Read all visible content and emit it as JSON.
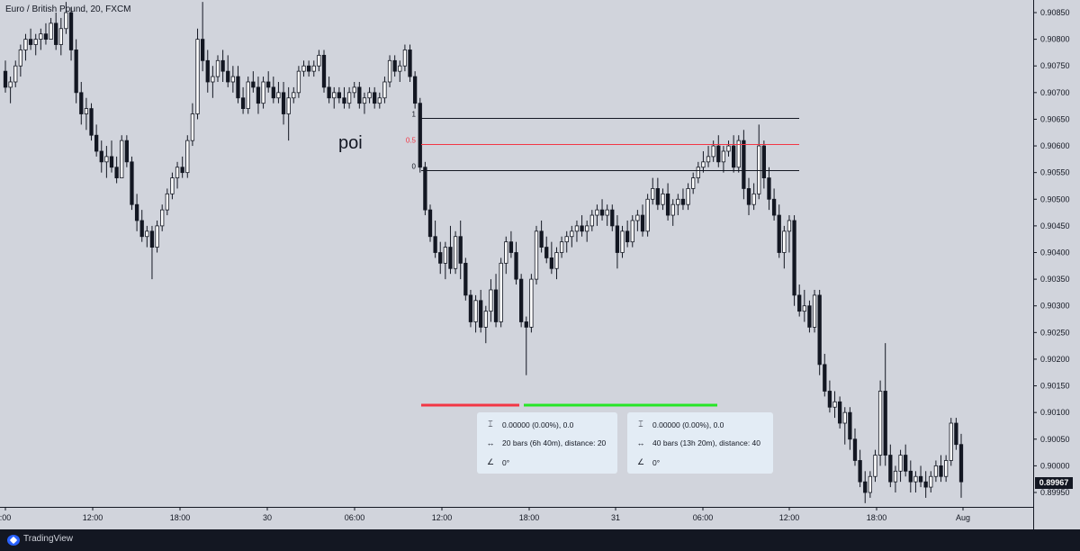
{
  "header": {
    "symbol_title": "Euro / British Pound, 20, FXCM"
  },
  "annotations": {
    "poi": "poi"
  },
  "last_price_label": "0.89967",
  "fib": {
    "level_1": "1",
    "level_half": "0.5",
    "level_0": "0"
  },
  "measure_boxes": [
    {
      "price_change": "0.00000 (0.00%), 0.0",
      "bars": "20 bars (6h 40m), distance: 20",
      "angle": "0°"
    },
    {
      "price_change": "0.00000 (0.00%), 0.0",
      "bars": "40 bars (13h 20m), distance: 40",
      "angle": "0°"
    }
  ],
  "footer": {
    "brand": "TradingView"
  },
  "colors": {
    "background": "#d1d4dc",
    "candle": "#131722",
    "red_line": "#f23645",
    "green_line": "#26e626",
    "fib_mid": "#f23645"
  },
  "icons": {
    "range": "price-range-icon",
    "bars": "bars-range-icon",
    "angle": "angle-icon",
    "logo": "tradingview-logo-icon"
  },
  "chart_data": {
    "type": "candlestick",
    "title": "Euro / British Pound, 20, FXCM",
    "ylim": [
      0.89925,
      0.90865
    ],
    "y_ticks": [
      "0.90850",
      "0.90800",
      "0.90750",
      "0.90700",
      "0.90650",
      "0.90600",
      "0.90550",
      "0.90500",
      "0.90450",
      "0.90400",
      "0.90350",
      "0.90300",
      "0.90250",
      "0.90200",
      "0.90150",
      "0.90100",
      "0.90050",
      "0.90000",
      "0.89950"
    ],
    "x_tick_labels": [
      ":00",
      "12:00",
      "18:00",
      "30",
      "06:00",
      "12:00",
      "18:00",
      "31",
      "06:00",
      "12:00",
      "18:00",
      "Aug"
    ],
    "last_price": 0.89967,
    "fib_levels": {
      "1": 0.90653,
      "0.5": 0.90604,
      "0": 0.90555
    },
    "measure_ranges": [
      {
        "color": "red",
        "bars": 20
      },
      {
        "color": "green",
        "bars": 40
      }
    ],
    "candles": [
      [
        0.9074,
        0.9076,
        0.907,
        0.9071
      ],
      [
        0.9071,
        0.9073,
        0.9068,
        0.9072
      ],
      [
        0.9072,
        0.9076,
        0.9071,
        0.9075
      ],
      [
        0.9075,
        0.9079,
        0.9073,
        0.9078
      ],
      [
        0.9078,
        0.9081,
        0.9076,
        0.908
      ],
      [
        0.908,
        0.9082,
        0.9078,
        0.9079
      ],
      [
        0.9079,
        0.9081,
        0.9077,
        0.908
      ],
      [
        0.908,
        0.9082,
        0.9078,
        0.9081
      ],
      [
        0.9081,
        0.9083,
        0.9079,
        0.908
      ],
      [
        0.908,
        0.9084,
        0.908,
        0.9083
      ],
      [
        0.9083,
        0.9085,
        0.9078,
        0.9079
      ],
      [
        0.9079,
        0.9084,
        0.9077,
        0.9082
      ],
      [
        0.9082,
        0.9087,
        0.9081,
        0.9085
      ],
      [
        0.9085,
        0.9086,
        0.9076,
        0.9078
      ],
      [
        0.9078,
        0.908,
        0.9068,
        0.907
      ],
      [
        0.907,
        0.9072,
        0.9064,
        0.9066
      ],
      [
        0.9066,
        0.9069,
        0.9063,
        0.9067
      ],
      [
        0.9067,
        0.9068,
        0.9061,
        0.9062
      ],
      [
        0.9062,
        0.9064,
        0.9058,
        0.9059
      ],
      [
        0.9059,
        0.9061,
        0.9055,
        0.9057
      ],
      [
        0.9057,
        0.906,
        0.9054,
        0.9058
      ],
      [
        0.9058,
        0.9061,
        0.9055,
        0.9056
      ],
      [
        0.9056,
        0.9058,
        0.9053,
        0.9054
      ],
      [
        0.9054,
        0.9062,
        0.9054,
        0.9061
      ],
      [
        0.9061,
        0.9062,
        0.9056,
        0.9057
      ],
      [
        0.9057,
        0.9058,
        0.9048,
        0.9049
      ],
      [
        0.9049,
        0.9051,
        0.9044,
        0.9046
      ],
      [
        0.9046,
        0.9048,
        0.9042,
        0.9043
      ],
      [
        0.9043,
        0.9045,
        0.9041,
        0.9044
      ],
      [
        0.9044,
        0.9045,
        0.9035,
        0.9041
      ],
      [
        0.9041,
        0.9046,
        0.904,
        0.9045
      ],
      [
        0.9045,
        0.9049,
        0.9044,
        0.9048
      ],
      [
        0.9048,
        0.9052,
        0.9047,
        0.9051
      ],
      [
        0.9051,
        0.9055,
        0.905,
        0.9054
      ],
      [
        0.9054,
        0.9057,
        0.9052,
        0.9056
      ],
      [
        0.9056,
        0.9058,
        0.9054,
        0.9055
      ],
      [
        0.9055,
        0.9062,
        0.9054,
        0.9061
      ],
      [
        0.9061,
        0.9068,
        0.906,
        0.9066
      ],
      [
        0.9066,
        0.9082,
        0.9065,
        0.908
      ],
      [
        0.908,
        0.9087,
        0.9074,
        0.9076
      ],
      [
        0.9076,
        0.9078,
        0.907,
        0.9072
      ],
      [
        0.9072,
        0.9075,
        0.9069,
        0.9073
      ],
      [
        0.9073,
        0.9077,
        0.9072,
        0.9076
      ],
      [
        0.9076,
        0.9078,
        0.9072,
        0.9074
      ],
      [
        0.9074,
        0.9077,
        0.9071,
        0.9072
      ],
      [
        0.9072,
        0.9075,
        0.907,
        0.9073
      ],
      [
        0.9073,
        0.9075,
        0.9068,
        0.9069
      ],
      [
        0.9069,
        0.9071,
        0.9066,
        0.9067
      ],
      [
        0.9067,
        0.9073,
        0.9066,
        0.9072
      ],
      [
        0.9072,
        0.9074,
        0.907,
        0.9071
      ],
      [
        0.9071,
        0.9073,
        0.9066,
        0.9068
      ],
      [
        0.9068,
        0.9073,
        0.9067,
        0.9072
      ],
      [
        0.9072,
        0.9074,
        0.907,
        0.9071
      ],
      [
        0.9071,
        0.9073,
        0.9068,
        0.9069
      ],
      [
        0.9069,
        0.9072,
        0.9068,
        0.907
      ],
      [
        0.907,
        0.9072,
        0.9064,
        0.9066
      ],
      [
        0.9066,
        0.9071,
        0.9061,
        0.9069
      ],
      [
        0.9069,
        0.9071,
        0.9068,
        0.907
      ],
      [
        0.907,
        0.9075,
        0.9069,
        0.9074
      ],
      [
        0.9074,
        0.9076,
        0.9073,
        0.9075
      ],
      [
        0.9075,
        0.9076,
        0.9073,
        0.9074
      ],
      [
        0.9074,
        0.9076,
        0.9073,
        0.9075
      ],
      [
        0.9075,
        0.9078,
        0.9074,
        0.9077
      ],
      [
        0.9077,
        0.9078,
        0.907,
        0.9071
      ],
      [
        0.9071,
        0.9073,
        0.9068,
        0.9069
      ],
      [
        0.9069,
        0.9071,
        0.9067,
        0.907
      ],
      [
        0.907,
        0.9071,
        0.9068,
        0.9069
      ],
      [
        0.9069,
        0.9071,
        0.9067,
        0.9068
      ],
      [
        0.9068,
        0.9071,
        0.9067,
        0.907
      ],
      [
        0.907,
        0.9072,
        0.9069,
        0.9071
      ],
      [
        0.9071,
        0.9072,
        0.9067,
        0.9068
      ],
      [
        0.9068,
        0.907,
        0.9066,
        0.9069
      ],
      [
        0.9069,
        0.9071,
        0.9068,
        0.907
      ],
      [
        0.907,
        0.9071,
        0.9067,
        0.9068
      ],
      [
        0.9068,
        0.907,
        0.9067,
        0.9069
      ],
      [
        0.9069,
        0.9073,
        0.9068,
        0.9072
      ],
      [
        0.9072,
        0.9077,
        0.9071,
        0.9076
      ],
      [
        0.9076,
        0.9077,
        0.9073,
        0.9074
      ],
      [
        0.9074,
        0.9076,
        0.9072,
        0.9075
      ],
      [
        0.9075,
        0.9079,
        0.9074,
        0.9078
      ],
      [
        0.9078,
        0.9079,
        0.9072,
        0.9073
      ],
      [
        0.9073,
        0.9074,
        0.9067,
        0.9068
      ],
      [
        0.9068,
        0.9069,
        0.9055,
        0.9056
      ],
      [
        0.9056,
        0.9057,
        0.9047,
        0.9048
      ],
      [
        0.9048,
        0.9049,
        0.9042,
        0.9043
      ],
      [
        0.9043,
        0.9046,
        0.9039,
        0.904
      ],
      [
        0.904,
        0.9042,
        0.9036,
        0.9038
      ],
      [
        0.9038,
        0.9042,
        0.9035,
        0.9041
      ],
      [
        0.9041,
        0.9045,
        0.9036,
        0.9037
      ],
      [
        0.9037,
        0.9044,
        0.9036,
        0.9043
      ],
      [
        0.9043,
        0.9046,
        0.9035,
        0.9038
      ],
      [
        0.9038,
        0.9039,
        0.9031,
        0.9032
      ],
      [
        0.9032,
        0.9033,
        0.9026,
        0.9027
      ],
      [
        0.9027,
        0.9032,
        0.9025,
        0.9031
      ],
      [
        0.9031,
        0.9033,
        0.9025,
        0.9026
      ],
      [
        0.9026,
        0.903,
        0.9023,
        0.9029
      ],
      [
        0.9029,
        0.9035,
        0.9027,
        0.9033
      ],
      [
        0.9033,
        0.9036,
        0.9026,
        0.9027
      ],
      [
        0.9027,
        0.9039,
        0.9026,
        0.9038
      ],
      [
        0.9038,
        0.9043,
        0.9036,
        0.9042
      ],
      [
        0.9042,
        0.9044,
        0.9039,
        0.904
      ],
      [
        0.904,
        0.9042,
        0.9034,
        0.9035
      ],
      [
        0.9035,
        0.9036,
        0.9026,
        0.9027
      ],
      [
        0.9027,
        0.9028,
        0.9017,
        0.9026
      ],
      [
        0.9026,
        0.9036,
        0.9025,
        0.9035
      ],
      [
        0.9035,
        0.9045,
        0.9034,
        0.9044
      ],
      [
        0.9044,
        0.9046,
        0.904,
        0.9041
      ],
      [
        0.9041,
        0.9043,
        0.9038,
        0.9039
      ],
      [
        0.9039,
        0.9042,
        0.9036,
        0.9037
      ],
      [
        0.9037,
        0.9041,
        0.9035,
        0.904
      ],
      [
        0.904,
        0.9043,
        0.9039,
        0.9042
      ],
      [
        0.9042,
        0.9044,
        0.904,
        0.9043
      ],
      [
        0.9043,
        0.9045,
        0.9041,
        0.9044
      ],
      [
        0.9044,
        0.9046,
        0.9042,
        0.9045
      ],
      [
        0.9045,
        0.9047,
        0.9043,
        0.9044
      ],
      [
        0.9044,
        0.9046,
        0.9042,
        0.9045
      ],
      [
        0.9045,
        0.9048,
        0.9044,
        0.9047
      ],
      [
        0.9047,
        0.9049,
        0.9045,
        0.9048
      ],
      [
        0.9048,
        0.905,
        0.9046,
        0.9047
      ],
      [
        0.9047,
        0.9049,
        0.9045,
        0.9048
      ],
      [
        0.9048,
        0.9049,
        0.9044,
        0.9045
      ],
      [
        0.9045,
        0.9047,
        0.9037,
        0.904
      ],
      [
        0.904,
        0.9045,
        0.9039,
        0.9044
      ],
      [
        0.9044,
        0.9046,
        0.9041,
        0.9042
      ],
      [
        0.9042,
        0.9047,
        0.9041,
        0.9046
      ],
      [
        0.9046,
        0.9048,
        0.9044,
        0.9047
      ],
      [
        0.9047,
        0.9049,
        0.9043,
        0.9044
      ],
      [
        0.9044,
        0.9051,
        0.9043,
        0.905
      ],
      [
        0.905,
        0.9054,
        0.9049,
        0.9052
      ],
      [
        0.9052,
        0.9054,
        0.9048,
        0.9049
      ],
      [
        0.9049,
        0.9052,
        0.9048,
        0.9051
      ],
      [
        0.9051,
        0.9053,
        0.9046,
        0.9047
      ],
      [
        0.9047,
        0.905,
        0.9045,
        0.9049
      ],
      [
        0.9049,
        0.9051,
        0.9047,
        0.905
      ],
      [
        0.905,
        0.9052,
        0.9048,
        0.9049
      ],
      [
        0.9049,
        0.9053,
        0.9048,
        0.9052
      ],
      [
        0.9052,
        0.9055,
        0.9051,
        0.9054
      ],
      [
        0.9054,
        0.9057,
        0.9053,
        0.9056
      ],
      [
        0.9056,
        0.9059,
        0.9055,
        0.9057
      ],
      [
        0.9057,
        0.906,
        0.9056,
        0.9058
      ],
      [
        0.9058,
        0.9061,
        0.9057,
        0.906
      ],
      [
        0.906,
        0.9062,
        0.9056,
        0.9057
      ],
      [
        0.9057,
        0.906,
        0.9055,
        0.9059
      ],
      [
        0.9059,
        0.9061,
        0.9058,
        0.906
      ],
      [
        0.906,
        0.9062,
        0.9055,
        0.9056
      ],
      [
        0.9056,
        0.9062,
        0.9055,
        0.9061
      ],
      [
        0.9061,
        0.9063,
        0.905,
        0.9052
      ],
      [
        0.9052,
        0.9054,
        0.9047,
        0.9049
      ],
      [
        0.9049,
        0.9053,
        0.9048,
        0.9051
      ],
      [
        0.9051,
        0.9064,
        0.905,
        0.906
      ],
      [
        0.906,
        0.9061,
        0.9052,
        0.9054
      ],
      [
        0.9054,
        0.9056,
        0.9048,
        0.905
      ],
      [
        0.905,
        0.9052,
        0.9046,
        0.9047
      ],
      [
        0.9047,
        0.9049,
        0.9039,
        0.904
      ],
      [
        0.904,
        0.9045,
        0.9037,
        0.9044
      ],
      [
        0.9044,
        0.9047,
        0.904,
        0.9046
      ],
      [
        0.9046,
        0.9047,
        0.903,
        0.9032
      ],
      [
        0.9032,
        0.9034,
        0.9028,
        0.9029
      ],
      [
        0.9029,
        0.9033,
        0.9027,
        0.903
      ],
      [
        0.903,
        0.9031,
        0.9025,
        0.9026
      ],
      [
        0.9026,
        0.9033,
        0.9025,
        0.9032
      ],
      [
        0.9032,
        0.9033,
        0.9017,
        0.9019
      ],
      [
        0.9019,
        0.9021,
        0.9013,
        0.9014
      ],
      [
        0.9014,
        0.9016,
        0.901,
        0.9011
      ],
      [
        0.9011,
        0.9014,
        0.9009,
        0.9012
      ],
      [
        0.9012,
        0.9013,
        0.9007,
        0.9008
      ],
      [
        0.9008,
        0.9011,
        0.9004,
        0.901
      ],
      [
        0.901,
        0.9011,
        0.9003,
        0.9005
      ],
      [
        0.9005,
        0.9007,
        0.9,
        0.9001
      ],
      [
        0.9001,
        0.9003,
        0.8996,
        0.8997
      ],
      [
        0.8997,
        0.8999,
        0.8993,
        0.8995
      ],
      [
        0.8995,
        0.8999,
        0.8994,
        0.8998
      ],
      [
        0.8998,
        0.9003,
        0.8997,
        0.9002
      ],
      [
        0.9002,
        0.9016,
        0.9,
        0.9014
      ],
      [
        0.9014,
        0.9023,
        0.9,
        0.9002
      ],
      [
        0.9002,
        0.9004,
        0.8996,
        0.8997
      ],
      [
        0.8997,
        0.9,
        0.8995,
        0.8999
      ],
      [
        0.8999,
        0.9003,
        0.8997,
        0.9002
      ],
      [
        0.9002,
        0.9004,
        0.8998,
        0.8999
      ],
      [
        0.8999,
        0.9001,
        0.8995,
        0.8997
      ],
      [
        0.8997,
        0.8999,
        0.8995,
        0.8998
      ],
      [
        0.8998,
        0.9,
        0.8996,
        0.8997
      ],
      [
        0.8997,
        0.8999,
        0.8994,
        0.8996
      ],
      [
        0.8996,
        0.8999,
        0.8995,
        0.8998
      ],
      [
        0.8998,
        0.9001,
        0.8997,
        0.9
      ],
      [
        0.9,
        0.9002,
        0.8997,
        0.8998
      ],
      [
        0.8998,
        0.9002,
        0.8997,
        0.9001
      ],
      [
        0.9001,
        0.9009,
        0.9,
        0.9008
      ],
      [
        0.9008,
        0.9009,
        0.9003,
        0.9004
      ],
      [
        0.9004,
        0.9006,
        0.8994,
        0.8997
      ]
    ]
  }
}
